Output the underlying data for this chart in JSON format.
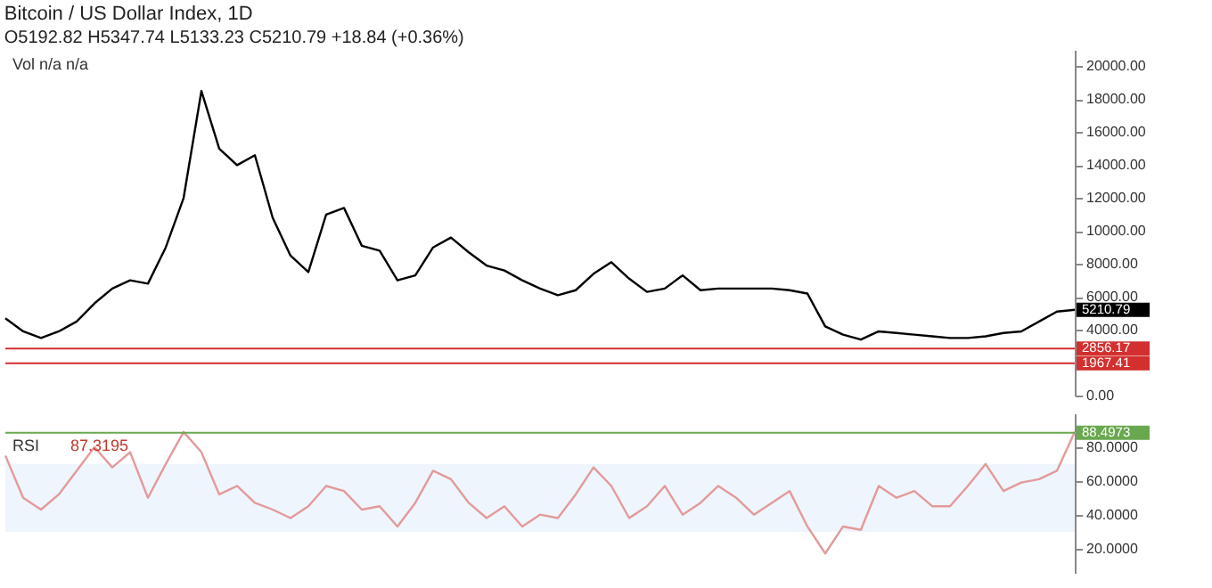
{
  "chart_data": [
    {
      "type": "line",
      "title": "Bitcoin / US Dollar Index, 1D",
      "subtitle": "O5192.82  H5347.74  L5133.23  C5210.79  +18.84 (+0.36%)",
      "annotations": [
        "Vol n/a n/a"
      ],
      "categories": [
        null,
        null,
        null,
        null,
        null,
        null,
        null,
        null,
        null,
        null,
        null,
        null,
        null,
        null,
        null,
        null,
        null,
        null,
        null,
        null,
        null,
        null,
        null,
        null,
        null,
        null,
        null,
        null,
        null,
        null,
        null,
        null,
        null,
        null,
        null,
        null,
        null,
        null,
        null,
        null,
        null,
        null,
        null,
        null,
        null,
        null,
        null,
        null,
        null,
        null,
        null,
        null,
        null,
        null,
        null,
        null,
        null,
        null,
        null,
        null,
        null
      ],
      "series": [
        {
          "color": "#000000",
          "values": [
            4700,
            3900,
            3500,
            3900,
            4500,
            5600,
            6500,
            7000,
            6800,
            9000,
            12000,
            18500,
            15000,
            14000,
            14600,
            10800,
            8500,
            7500,
            11000,
            11400,
            9100,
            8800,
            7000,
            7300,
            9000,
            9600,
            8700,
            7900,
            7600,
            7000,
            6500,
            6100,
            6400,
            7400,
            8100,
            7100,
            6300,
            6500,
            7300,
            6400,
            6500,
            6500,
            6500,
            6500,
            6400,
            6200,
            4200,
            3700,
            3400,
            3900,
            3800,
            3700,
            3600,
            3500,
            3500,
            3600,
            3800,
            3900,
            4500,
            5100,
            5210.79
          ],
          "value_labels": [
            null,
            null,
            null,
            null,
            null,
            null,
            null,
            null,
            null,
            null,
            null,
            null,
            null,
            null,
            null,
            null,
            null,
            null,
            null,
            null,
            null,
            null,
            null,
            null,
            null,
            null,
            null,
            null,
            null,
            null,
            null,
            null,
            null,
            null,
            null,
            null,
            null,
            null,
            null,
            null,
            null,
            null,
            null,
            null,
            null,
            null,
            null,
            null,
            null,
            null,
            null,
            null,
            null,
            null,
            null,
            null,
            null,
            null,
            null,
            null,
            "5210.79"
          ]
        }
      ],
      "ylim": [
        0,
        21000
      ],
      "yticks": [
        {
          "value": 0,
          "label": "0.00"
        },
        {
          "value": 2000,
          "label": null
        },
        {
          "value": 4000,
          "label": "4000.00"
        },
        {
          "value": 6000,
          "label": "6000.00"
        },
        {
          "value": 8000,
          "label": "8000.00"
        },
        {
          "value": 10000,
          "label": "10000.00"
        },
        {
          "value": 12000,
          "label": "12000.00"
        },
        {
          "value": 14000,
          "label": "14000.00"
        },
        {
          "value": 16000,
          "label": "16000.00"
        },
        {
          "value": 18000,
          "label": "18000.00"
        },
        {
          "value": 20000,
          "label": "20000.00"
        }
      ],
      "ref_lines": [
        {
          "axis": "y",
          "value": 2856.17,
          "label": "2856.17",
          "color": "#d32f2f"
        },
        {
          "axis": "y",
          "value": 1967.41,
          "label": "1967.41",
          "color": "#d32f2f"
        }
      ],
      "tick_labels": "y",
      "grid": false
    },
    {
      "type": "line",
      "annotations": [
        "RSI",
        "87.3195"
      ],
      "categories": [
        null,
        null,
        null,
        null,
        null,
        null,
        null,
        null,
        null,
        null,
        null,
        null,
        null,
        null,
        null,
        null,
        null,
        null,
        null,
        null,
        null,
        null,
        null,
        null,
        null,
        null,
        null,
        null,
        null,
        null,
        null,
        null,
        null,
        null,
        null,
        null,
        null,
        null,
        null,
        null,
        null,
        null,
        null,
        null,
        null,
        null,
        null,
        null,
        null,
        null,
        null,
        null,
        null,
        null,
        null,
        null,
        null,
        null,
        null,
        null,
        null
      ],
      "series": [
        {
          "color": "#e39a9a",
          "values": [
            75,
            50,
            43,
            52,
            66,
            80,
            68,
            77,
            50,
            70,
            89,
            77,
            52,
            57,
            47,
            43,
            38,
            45,
            57,
            54,
            43,
            45,
            33,
            47,
            66,
            61,
            47,
            38,
            45,
            33,
            40,
            38,
            52,
            68,
            57,
            38,
            45,
            57,
            40,
            47,
            57,
            50,
            40,
            47,
            54,
            33,
            17,
            33,
            31,
            57,
            50,
            54,
            45,
            45,
            57,
            70,
            54,
            59,
            61,
            66,
            89
          ]
        }
      ],
      "ylim": [
        5,
        100
      ],
      "yticks": [
        {
          "value": 20,
          "label": "20.0000"
        },
        {
          "value": 40,
          "label": "40.0000"
        },
        {
          "value": 60,
          "label": "60.0000"
        },
        {
          "value": 80,
          "label": "80.0000"
        }
      ],
      "bands": [
        {
          "axis": "y",
          "from": 30,
          "to": 70,
          "color": "#eef5fc"
        }
      ],
      "ref_lines": [
        {
          "axis": "y",
          "value": 88.4973,
          "label": "88.4973",
          "color": "#6aa84f"
        }
      ],
      "tick_labels": "y",
      "grid": false
    }
  ]
}
